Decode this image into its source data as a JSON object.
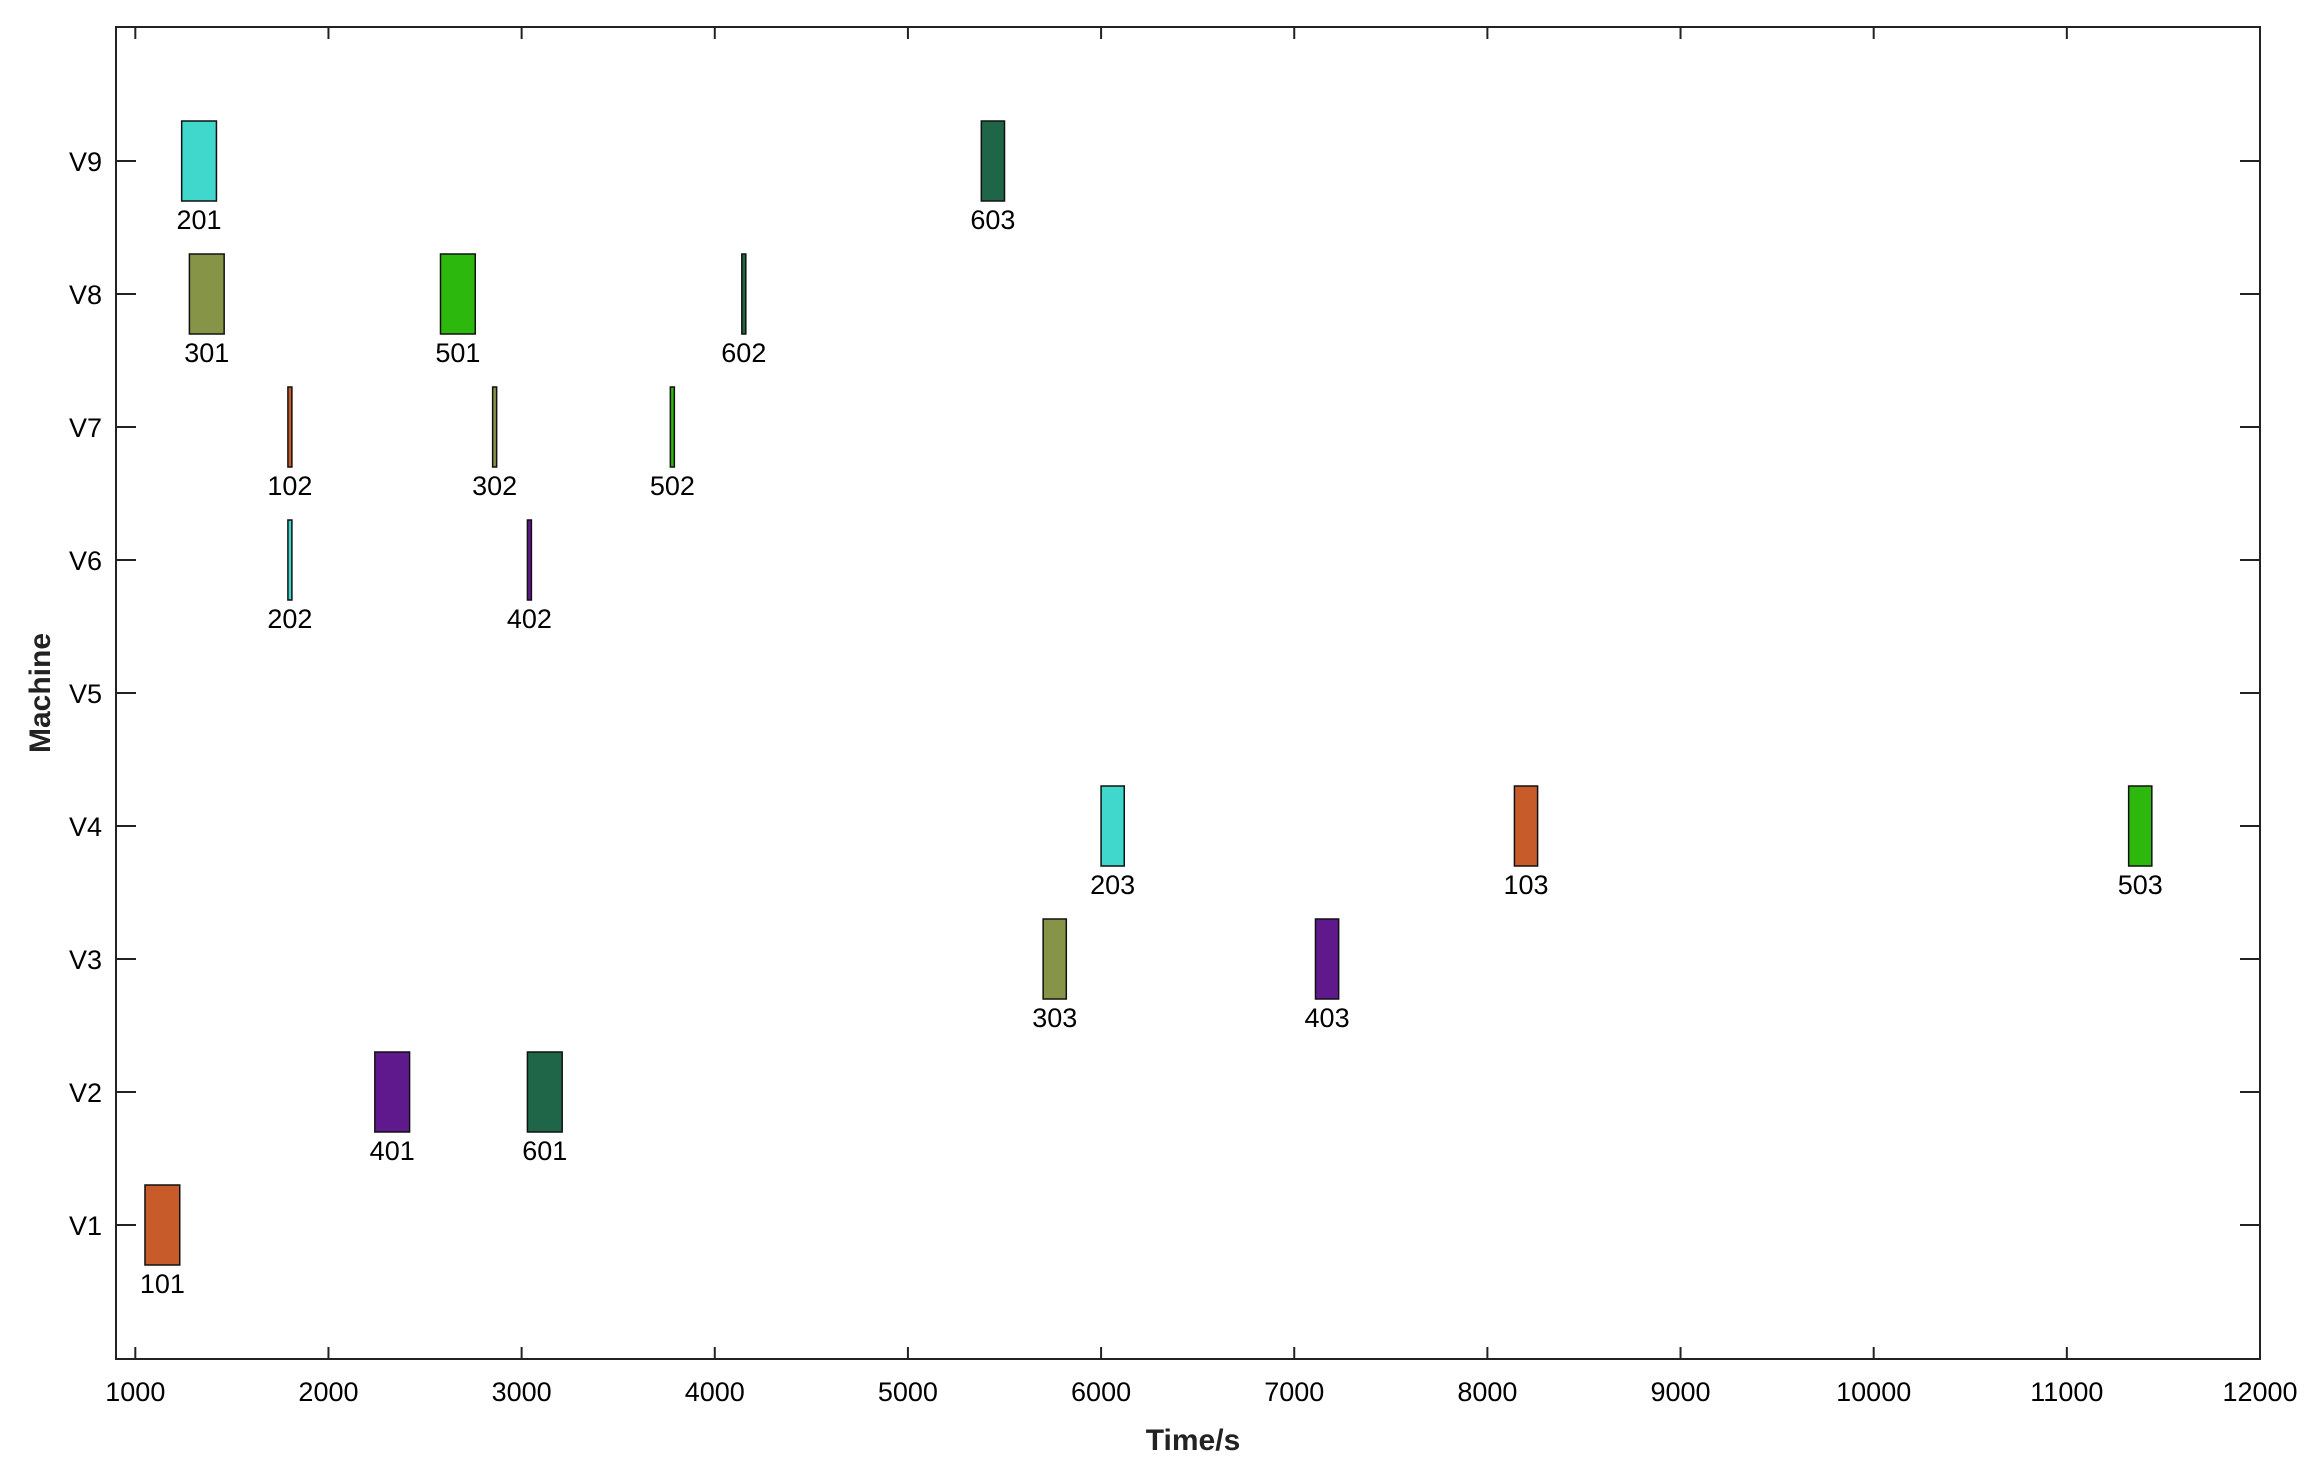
{
  "chart_data": {
    "type": "gantt",
    "xlabel": "Time/s",
    "ylabel": "Machine",
    "xlim": [
      900,
      12000
    ],
    "x_ticks": [
      1000,
      2000,
      3000,
      4000,
      5000,
      6000,
      7000,
      8000,
      9000,
      10000,
      11000,
      12000
    ],
    "machines": [
      "V1",
      "V2",
      "V3",
      "V4",
      "V5",
      "V6",
      "V7",
      "V8",
      "V9"
    ],
    "grid": false,
    "tasks": [
      {
        "label": "101",
        "machine": "V1",
        "start": 1050,
        "end": 1230,
        "color": "#C75B2A"
      },
      {
        "label": "102",
        "machine": "V7",
        "start": 1790,
        "end": 1810,
        "color": "#C75B2A"
      },
      {
        "label": "103",
        "machine": "V4",
        "start": 8140,
        "end": 8260,
        "color": "#C75B2A"
      },
      {
        "label": "201",
        "machine": "V9",
        "start": 1240,
        "end": 1420,
        "color": "#40D8CC"
      },
      {
        "label": "202",
        "machine": "V6",
        "start": 1790,
        "end": 1810,
        "color": "#40D8CC"
      },
      {
        "label": "203",
        "machine": "V4",
        "start": 6000,
        "end": 6120,
        "color": "#40D8CC"
      },
      {
        "label": "301",
        "machine": "V8",
        "start": 1280,
        "end": 1460,
        "color": "#869448"
      },
      {
        "label": "302",
        "machine": "V7",
        "start": 2850,
        "end": 2870,
        "color": "#869448"
      },
      {
        "label": "303",
        "machine": "V3",
        "start": 5700,
        "end": 5820,
        "color": "#869448"
      },
      {
        "label": "401",
        "machine": "V2",
        "start": 2240,
        "end": 2420,
        "color": "#60198C"
      },
      {
        "label": "402",
        "machine": "V6",
        "start": 3030,
        "end": 3050,
        "color": "#60198C"
      },
      {
        "label": "403",
        "machine": "V3",
        "start": 7110,
        "end": 7230,
        "color": "#60198C"
      },
      {
        "label": "501",
        "machine": "V8",
        "start": 2580,
        "end": 2760,
        "color": "#2DB80D"
      },
      {
        "label": "502",
        "machine": "V7",
        "start": 3770,
        "end": 3790,
        "color": "#2DB80D"
      },
      {
        "label": "503",
        "machine": "V4",
        "start": 11320,
        "end": 11440,
        "color": "#2DB80D"
      },
      {
        "label": "601",
        "machine": "V2",
        "start": 3030,
        "end": 3210,
        "color": "#1E6647"
      },
      {
        "label": "602",
        "machine": "V8",
        "start": 4140,
        "end": 4160,
        "color": "#1E6647"
      },
      {
        "label": "603",
        "machine": "V9",
        "start": 5380,
        "end": 5500,
        "color": "#1E6647"
      }
    ]
  }
}
